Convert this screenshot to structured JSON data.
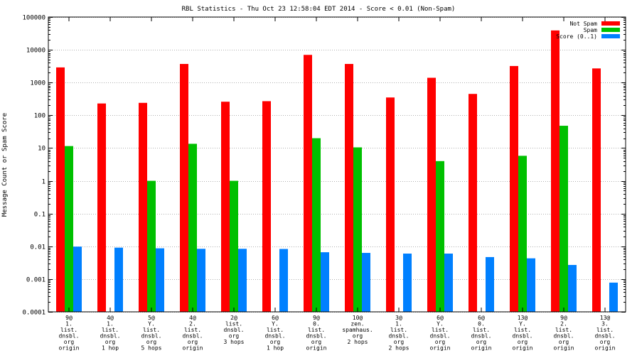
{
  "chart_data": {
    "type": "bar",
    "title": "RBL Statistics - Thu Oct 23 12:58:04 EDT 2014 - Score < 0.01 (Non-Spam)",
    "xlabel": "",
    "ylabel": "Message Count or Spam Score",
    "yscale": "log",
    "ylim": [
      0.0001,
      100000
    ],
    "yticks": [
      {
        "value": 100000,
        "label": "100000"
      },
      {
        "value": 10000,
        "label": "10000"
      },
      {
        "value": 1000,
        "label": "1000"
      },
      {
        "value": 100,
        "label": "100"
      },
      {
        "value": 10,
        "label": "10"
      },
      {
        "value": 1,
        "label": "1"
      },
      {
        "value": 0.1,
        "label": "0.1"
      },
      {
        "value": 0.01,
        "label": "0.01"
      },
      {
        "value": 0.001,
        "label": "0.001"
      },
      {
        "value": 0.0001,
        "label": "0.0001"
      }
    ],
    "legend_position": "top-right",
    "categories": [
      [
        "9@",
        "1.",
        "list.",
        "dnsbl.",
        "org",
        "origin"
      ],
      [
        "4@",
        "1.",
        "list.",
        "dnsbl.",
        "org",
        "1 hop"
      ],
      [
        "5@",
        "Y.",
        "list.",
        "dnsbl.",
        "org",
        "5 hops"
      ],
      [
        "4@",
        "2.",
        "list.",
        "dnsbl.",
        "org",
        "origin"
      ],
      [
        "2@",
        "list.",
        "dnsbl.",
        "org",
        "3 hops"
      ],
      [
        "6@",
        "Y.",
        "list.",
        "dnsbl.",
        "org",
        "1 hop"
      ],
      [
        "9@",
        "0.",
        "list.",
        "dnsbl.",
        "org",
        "origin"
      ],
      [
        "10@",
        "zen.",
        "spamhaus.",
        "org",
        "2 hops"
      ],
      [
        "3@",
        "1.",
        "list.",
        "dnsbl.",
        "org",
        "2 hops"
      ],
      [
        "6@",
        "Y.",
        "list.",
        "dnsbl.",
        "org",
        "origin"
      ],
      [
        "6@",
        "0.",
        "list.",
        "dnsbl.",
        "org",
        "origin"
      ],
      [
        "13@",
        "Y.",
        "list.",
        "dnsbl.",
        "org",
        "origin"
      ],
      [
        "9@",
        "2.",
        "list.",
        "dnsbl.",
        "org",
        "origin"
      ],
      [
        "13@",
        "3.",
        "list.",
        "dnsbl.",
        "org",
        "origin"
      ]
    ],
    "series": [
      {
        "name": "Not Spam",
        "color": "#ff0000",
        "values": [
          2900,
          230,
          240,
          3700,
          260,
          270,
          7000,
          3700,
          350,
          1400,
          450,
          3200,
          39000,
          2700
        ]
      },
      {
        "name": "Spam",
        "color": "#00c000",
        "values": [
          11.5,
          null,
          1,
          13.5,
          1,
          null,
          20,
          10.5,
          null,
          4,
          null,
          5.8,
          48,
          null
        ]
      },
      {
        "name": "Score (0..1)",
        "color": "#0080ff",
        "values": [
          0.0098,
          0.0091,
          0.0087,
          0.0084,
          0.0084,
          0.0083,
          0.0066,
          0.0063,
          0.006,
          0.006,
          0.0047,
          0.0043,
          0.0027,
          0.00078
        ]
      }
    ]
  }
}
